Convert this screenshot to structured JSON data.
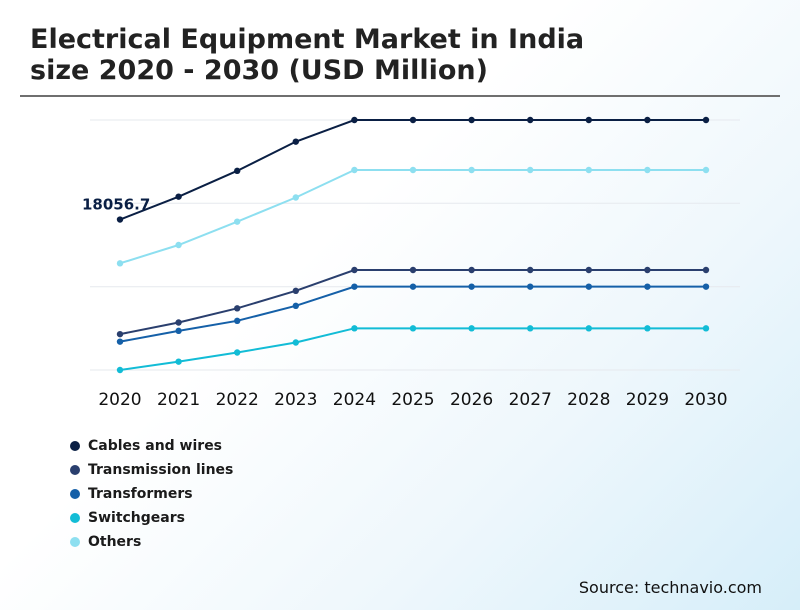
{
  "title_line1": "Electrical Equipment Market in India",
  "title_line2": "size 2020 - 2030 (USD Million)",
  "source": "Source: technavio.com",
  "chart_data": {
    "type": "line",
    "title": "Electrical Equipment Market in India size 2020 - 2030 (USD Million)",
    "xlabel": "",
    "ylabel": "",
    "categories": [
      "2020",
      "2021",
      "2022",
      "2023",
      "2024",
      "2025",
      "2026",
      "2027",
      "2028",
      "2029",
      "2030"
    ],
    "ylim": [
      0,
      30000
    ],
    "grid": true,
    "legend_position": "bottom-left",
    "series": [
      {
        "name": "Cables and wires",
        "color": "#0a1f44",
        "values": [
          18056.7,
          20800,
          23900,
          27400,
          30000,
          30000,
          30000,
          30000,
          30000,
          30000,
          30000
        ]
      },
      {
        "name": "Transmission lines",
        "color": "#2a3f6e",
        "values": [
          4300,
          5700,
          7400,
          9500,
          12000,
          12000,
          12000,
          12000,
          12000,
          12000,
          12000
        ]
      },
      {
        "name": "Transformers",
        "color": "#1560a8",
        "values": [
          3400,
          4700,
          5900,
          7700,
          10000,
          10000,
          10000,
          10000,
          10000,
          10000,
          10000
        ]
      },
      {
        "name": "Switchgears",
        "color": "#12bcd6",
        "values": [
          0,
          1000,
          2100,
          3300,
          5000,
          5000,
          5000,
          5000,
          5000,
          5000,
          5000
        ]
      },
      {
        "name": "Others",
        "color": "#8ddff0",
        "values": [
          12800,
          15000,
          17800,
          20700,
          24000,
          24000,
          24000,
          24000,
          24000,
          24000,
          24000
        ]
      }
    ],
    "annotations": [
      {
        "series": "Cables and wires",
        "category": "2020",
        "text": "18056.7"
      }
    ]
  }
}
